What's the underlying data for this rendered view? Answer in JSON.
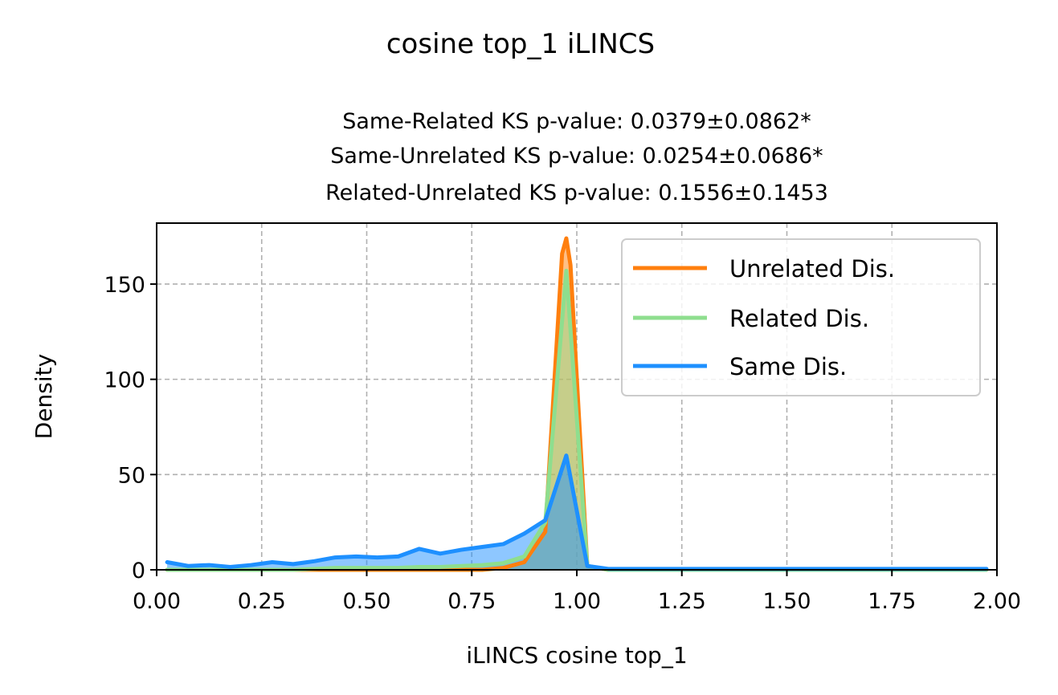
{
  "chart_data": {
    "type": "area",
    "title": "cosine top_1 iLINCS",
    "subtitle_lines": [
      "Same-Related KS p-value: 0.0379±0.0862*",
      "Same-Unrelated KS p-value: 0.0254±0.0686*",
      "Related-Unrelated KS p-value: 0.1556±0.1453"
    ],
    "xlabel": "iLINCS cosine top_1",
    "ylabel": "Density",
    "xlim": [
      0.0,
      2.0
    ],
    "ylim": [
      0,
      182
    ],
    "x_ticks": [
      "0.00",
      "0.25",
      "0.50",
      "0.75",
      "1.00",
      "1.25",
      "1.50",
      "1.75",
      "2.00"
    ],
    "x_tick_values": [
      0.0,
      0.25,
      0.5,
      0.75,
      1.0,
      1.25,
      1.5,
      1.75,
      2.0
    ],
    "y_ticks": [
      "0",
      "50",
      "100",
      "150"
    ],
    "y_tick_values": [
      0,
      50,
      100,
      150
    ],
    "grid": true,
    "legend_position": "top-right",
    "series": [
      {
        "name": "Unrelated Dis.",
        "color": "#ff7f0e",
        "fill": "#ff7f0e",
        "x": [
          0.025,
          0.075,
          0.125,
          0.175,
          0.225,
          0.275,
          0.325,
          0.375,
          0.425,
          0.475,
          0.525,
          0.575,
          0.625,
          0.675,
          0.725,
          0.775,
          0.825,
          0.875,
          0.925,
          0.965,
          0.975,
          0.985,
          1.025,
          1.075,
          1.5,
          1.975
        ],
        "values": [
          0,
          0,
          0,
          0,
          0,
          0,
          0,
          0,
          0,
          0,
          0,
          0,
          0,
          0,
          0,
          0,
          1,
          4,
          20,
          166,
          174,
          160,
          2,
          0,
          0,
          0
        ]
      },
      {
        "name": "Related Dis.",
        "color": "#8ede8e",
        "fill": "#8ede8e",
        "x": [
          0.025,
          0.075,
          0.125,
          0.175,
          0.225,
          0.275,
          0.325,
          0.375,
          0.425,
          0.475,
          0.525,
          0.575,
          0.625,
          0.675,
          0.725,
          0.775,
          0.825,
          0.875,
          0.925,
          0.975,
          1.025,
          1.075,
          1.5,
          1.975
        ],
        "values": [
          0,
          0,
          0,
          0,
          0,
          0,
          0,
          0.5,
          1,
          1,
          1,
          1,
          1.5,
          1.5,
          2,
          2.5,
          3.5,
          7,
          25,
          157,
          2,
          0,
          0,
          0
        ]
      },
      {
        "name": "Same Dis.",
        "color": "#1e90ff",
        "fill": "#1e90ff",
        "x": [
          0.025,
          0.075,
          0.125,
          0.175,
          0.225,
          0.275,
          0.325,
          0.375,
          0.425,
          0.475,
          0.525,
          0.575,
          0.625,
          0.675,
          0.725,
          0.775,
          0.825,
          0.875,
          0.925,
          0.975,
          1.025,
          1.075,
          1.5,
          1.975
        ],
        "values": [
          4,
          2,
          2.5,
          1.5,
          2.5,
          4,
          3,
          4.5,
          6.5,
          7,
          6.5,
          7,
          11,
          8.5,
          10.5,
          12,
          13.5,
          19,
          26,
          60,
          2,
          0.5,
          0.5,
          0.5
        ]
      }
    ]
  }
}
